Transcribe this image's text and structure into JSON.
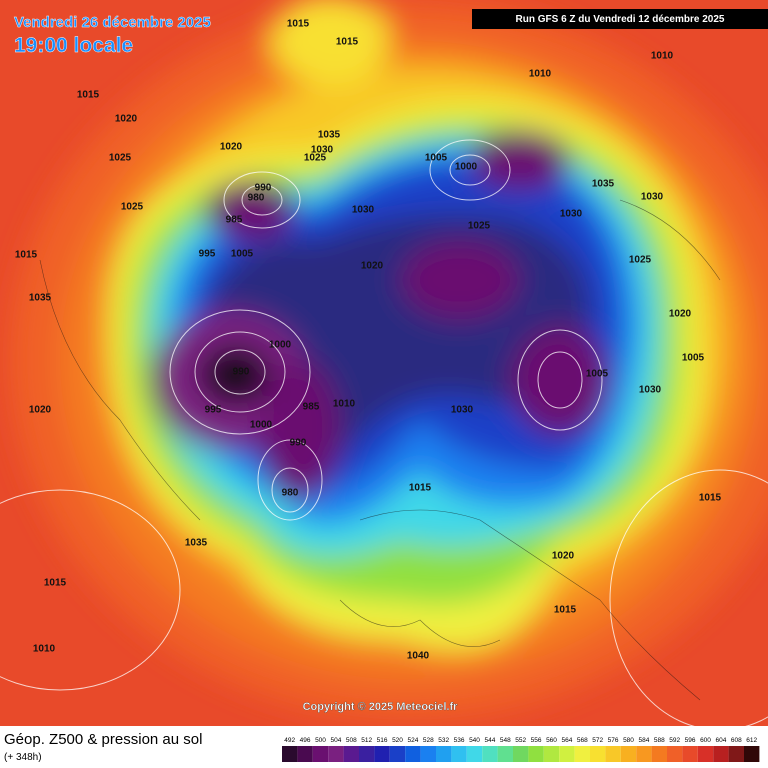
{
  "header": {
    "date": "Vendredi 26 décembre 2025",
    "time": "19:00 locale",
    "run": "Run GFS 6 Z du Vendredi 12 décembre 2025"
  },
  "footer": {
    "title": "Géop. Z500 & pression au sol",
    "lead": "(+ 348h)",
    "copyright": "Copyright © 2025 Meteociel.fr"
  },
  "scale": {
    "values": [
      492,
      496,
      500,
      504,
      508,
      512,
      516,
      520,
      524,
      528,
      532,
      536,
      540,
      544,
      548,
      552,
      556,
      560,
      564,
      568,
      572,
      576,
      580,
      584,
      588,
      592,
      596,
      600,
      604,
      608,
      612
    ],
    "colors": [
      "#2a0a2e",
      "#4a0a50",
      "#6a1070",
      "#7a2080",
      "#5a1a90",
      "#3a20a0",
      "#2020b0",
      "#1a40c8",
      "#1060e0",
      "#1a80f0",
      "#20a0f0",
      "#30c0f0",
      "#40d8e8",
      "#50e0c0",
      "#60e090",
      "#70d860",
      "#90e040",
      "#b0e840",
      "#d0f040",
      "#f0f040",
      "#f8e030",
      "#f8c828",
      "#f8b020",
      "#f89820",
      "#f47a20",
      "#f06028",
      "#e84a2a",
      "#d83028",
      "#b82020",
      "#801818",
      "#300808"
    ]
  },
  "isobar_labels": [
    "1015",
    "1015",
    "1015",
    "1015",
    "1015",
    "1015",
    "1015",
    "1015",
    "1010",
    "1010",
    "1010",
    "1010",
    "1020",
    "1020",
    "1020",
    "1020",
    "1020",
    "1020",
    "1025",
    "1025",
    "1025",
    "1025",
    "1025",
    "1030",
    "1030",
    "1030",
    "1030",
    "1030",
    "1030",
    "1035",
    "1035",
    "1035",
    "1035",
    "1005",
    "1005",
    "1005",
    "1005",
    "1000",
    "1000",
    "1000",
    "990",
    "990",
    "990",
    "985",
    "985",
    "980",
    "980",
    "995",
    "995",
    "1040"
  ]
}
